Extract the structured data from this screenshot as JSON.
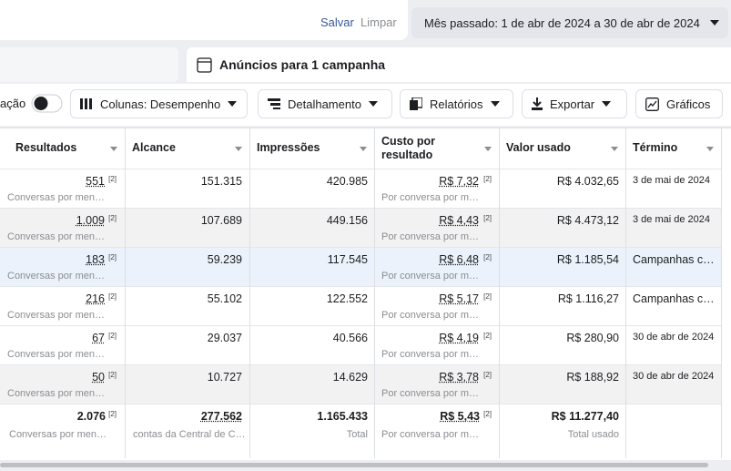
{
  "top_bar": {
    "save": "Salvar",
    "clear": "Limpar",
    "date_range": "Mês passado: 1 de abr de 2024 a 30 de abr de 2024"
  },
  "tab": {
    "title": "Anúncios para 1 campanha"
  },
  "toolbar": {
    "toggle_label": "ação",
    "columns": "Colunas: Desempenho",
    "breakdown": "Detalhamento",
    "reports": "Relatórios",
    "export": "Exportar",
    "charts": "Gráficos"
  },
  "table": {
    "headers": [
      "Resultados",
      "Alcance",
      "Impressões",
      "Custo por resultado",
      "Valor usado",
      "Término"
    ],
    "rows": [
      {
        "results": "551",
        "results_note": "[2]",
        "results_sub": "Conversas por men…",
        "reach": "151.315",
        "impressions": "420.985",
        "cost": "R$ 7,32",
        "cost_note": "[2]",
        "cost_sub": "Por conversa por m…",
        "spent": "R$ 4.032,65",
        "end": "3 de mai de 2024"
      },
      {
        "results": "1.009",
        "results_note": "[2]",
        "results_sub": "Conversas por men…",
        "reach": "107.689",
        "impressions": "449.156",
        "cost": "R$ 4,43",
        "cost_note": "[2]",
        "cost_sub": "Por conversa por m…",
        "spent": "R$ 4.473,12",
        "end": "3 de mai de 2024"
      },
      {
        "results": "183",
        "results_note": "[2]",
        "results_sub": "Conversas por men…",
        "reach": "59.239",
        "impressions": "117.545",
        "cost": "R$ 6,48",
        "cost_note": "[2]",
        "cost_sub": "Por conversa por m…",
        "spent": "R$ 1.185,54",
        "end": "Campanhas c…"
      },
      {
        "results": "216",
        "results_note": "[2]",
        "results_sub": "Conversas por men…",
        "reach": "55.102",
        "impressions": "122.552",
        "cost": "R$ 5,17",
        "cost_note": "[2]",
        "cost_sub": "Por conversa por m…",
        "spent": "R$ 1.116,27",
        "end": "Campanhas c…"
      },
      {
        "results": "67",
        "results_note": "[2]",
        "results_sub": "Conversas por men…",
        "reach": "29.037",
        "impressions": "40.566",
        "cost": "R$ 4,19",
        "cost_note": "[2]",
        "cost_sub": "Por conversa por m…",
        "spent": "R$ 280,90",
        "end": "30 de abr de 2024"
      },
      {
        "results": "50",
        "results_note": "[2]",
        "results_sub": "Conversas por men…",
        "reach": "10.727",
        "impressions": "14.629",
        "cost": "R$ 3,78",
        "cost_note": "[2]",
        "cost_sub": "Por conversa por m…",
        "spent": "R$ 188,92",
        "end": "30 de abr de 2024"
      }
    ],
    "totals": {
      "results": "2.076",
      "results_note": "[2]",
      "results_sub": "Conversas por men…",
      "reach": "277.562",
      "reach_sub": "contas da Central de C…",
      "impressions": "1.165.433",
      "impressions_sub": "Total",
      "cost": "R$ 5,43",
      "cost_note": "[2]",
      "cost_sub": "Por conversa por m…",
      "spent": "R$ 11.277,40",
      "spent_sub": "Total usado"
    }
  }
}
